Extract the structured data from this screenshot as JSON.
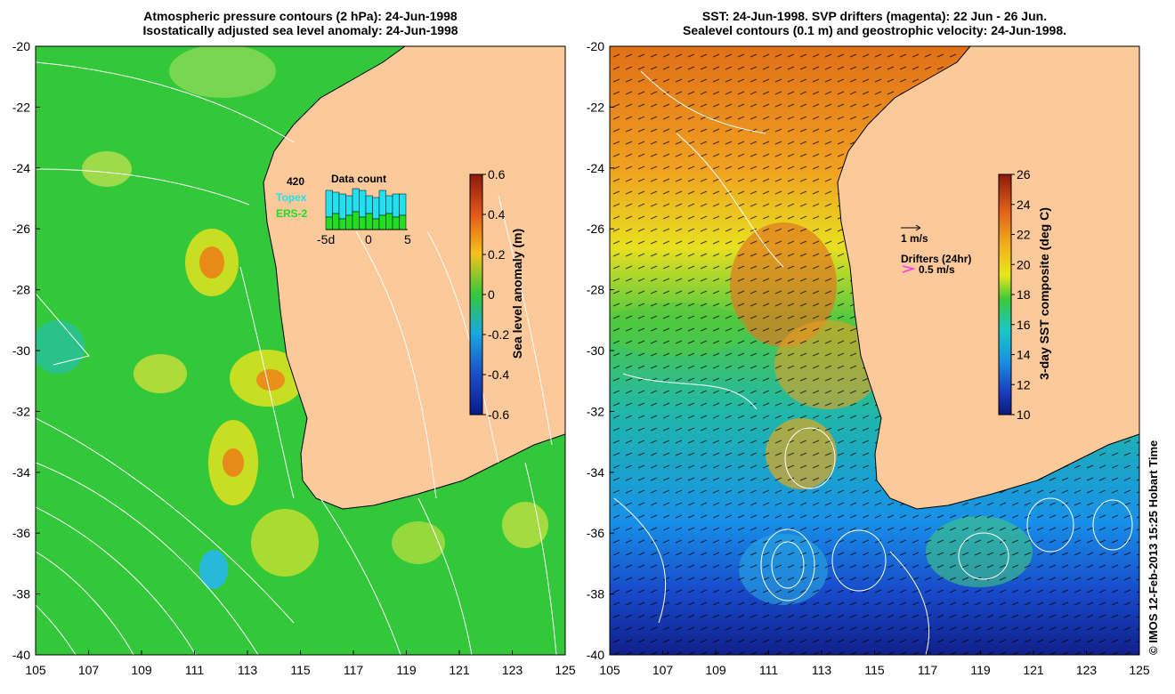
{
  "left_map": {
    "title_line1": "Atmospheric pressure contours (2 hPa): 24-Jun-1998",
    "title_line2": "Isostatically adjusted sea level anomaly: 24-Jun-1998",
    "colorbar_label": "Sea level anomaly (m)",
    "colorbar_ticks": [
      "0.6",
      "0.4",
      "0.2",
      "0",
      "-0.2",
      "-0.4",
      "-0.6"
    ],
    "inset": {
      "title": "Data count",
      "max_count": "420",
      "legend_topex": "Topex",
      "legend_ers2": "ERS-2",
      "axis_ticks": [
        "-5d",
        "0",
        "5"
      ],
      "topex_color": "#22e0f0",
      "ers2_color": "#22dd22"
    }
  },
  "right_map": {
    "title_line1": "SST: 24-Jun-1998. SVP drifters (magenta): 22 Jun - 26 Jun.",
    "title_line2": "Sealevel contours (0.1 m) and geostrophic velocity: 24-Jun-1998.",
    "colorbar_label": "3-day SST composite (deg C)",
    "colorbar_ticks": [
      "26",
      "24",
      "22",
      "20",
      "18",
      "16",
      "14",
      "12",
      "10"
    ],
    "velocity_key": "1 m/s",
    "drifters_key": "Drifters (24hr)",
    "drifters_speed": "0.5 m/s",
    "drifter_color": "#ff33ff"
  },
  "axes": {
    "x_ticks": [
      "105",
      "107",
      "109",
      "111",
      "113",
      "115",
      "117",
      "119",
      "121",
      "123",
      "125"
    ],
    "y_ticks": [
      "-20",
      "-22",
      "-24",
      "-26",
      "-28",
      "-30",
      "-32",
      "-34",
      "-36",
      "-38",
      "-40"
    ],
    "lon_range": [
      105,
      125
    ],
    "lat_range": [
      -20,
      -40
    ]
  },
  "credit": "© IMOS 12-Feb-2013 15:25 Hobart Time",
  "colors": {
    "land": "#fbc99a",
    "sla_ocean": "#33c83a"
  }
}
